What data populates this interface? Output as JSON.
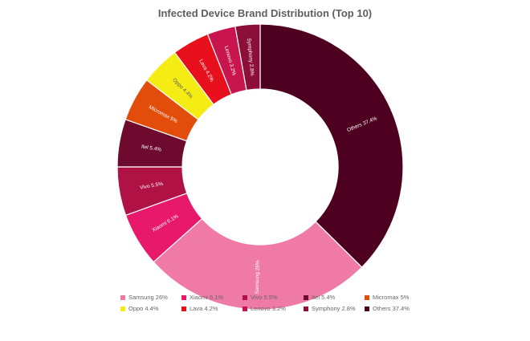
{
  "chart_data": {
    "type": "pie",
    "title": "Infected Device Brand Distribution (Top 10)",
    "legend_position": "bottom",
    "slices": [
      {
        "name": "Samsung",
        "value": 26,
        "label": "Samsung 26%",
        "color": "#f07aa6"
      },
      {
        "name": "Xiaomi",
        "value": 6.1,
        "label": "Xiaomi 6.1%",
        "color": "#e8196a"
      },
      {
        "name": "Vivo",
        "value": 5.5,
        "label": "Vivo 5.5%",
        "color": "#b01245"
      },
      {
        "name": "Itel",
        "value": 5.4,
        "label": "Itel 5.4%",
        "color": "#6e0a2e"
      },
      {
        "name": "Micromax",
        "value": 5,
        "label": "Micromax 5%",
        "color": "#e24d0c"
      },
      {
        "name": "Oppo",
        "value": 4.4,
        "label": "Oppo 4.4%",
        "color": "#f5ec14"
      },
      {
        "name": "Lava",
        "value": 4.2,
        "label": "Lava 4.2%",
        "color": "#e8101c"
      },
      {
        "name": "Lenovo",
        "value": 3.2,
        "label": "Lenovo 3.2%",
        "color": "#c8154e"
      },
      {
        "name": "Symphony",
        "value": 2.8,
        "label": "Symphony 2.8%",
        "color": "#8c0f3a"
      },
      {
        "name": "Others",
        "value": 37.4,
        "label": "Others 37.4%",
        "color": "#4d0020"
      }
    ]
  }
}
